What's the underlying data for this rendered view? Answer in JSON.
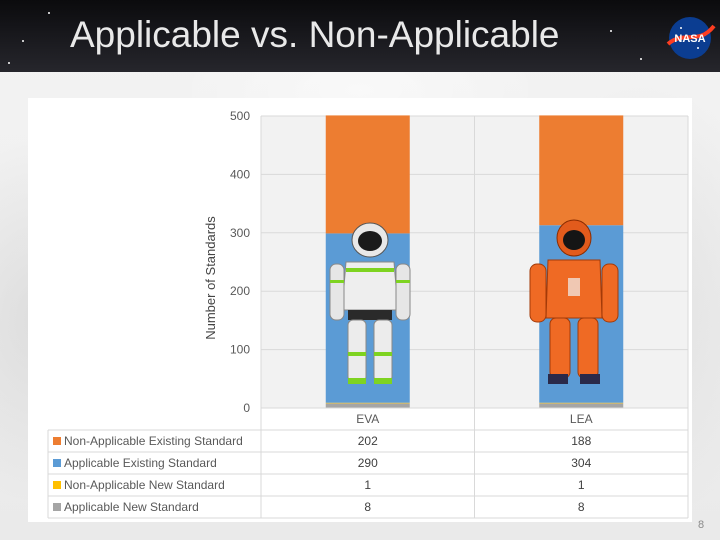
{
  "slide": {
    "title": "Applicable vs. Non-Applicable",
    "page_number": "8",
    "logo_text": "NASA"
  },
  "colors": {
    "non_applicable_existing": "#ED7D31",
    "applicable_existing": "#5B9BD5",
    "non_applicable_new": "#FFC000",
    "applicable_new": "#A5A5A5"
  },
  "chart_data": {
    "type": "bar",
    "stacked": true,
    "categories": [
      "EVA",
      "LEA"
    ],
    "ylabel": "Number of Standards",
    "ylim": [
      0,
      500
    ],
    "yticks": [
      0,
      100,
      200,
      300,
      400,
      500
    ],
    "grid": true,
    "legend_position": "data-table-left",
    "series": [
      {
        "name": "Applicable New Standard",
        "values": [
          8,
          8
        ],
        "color": "#A5A5A5"
      },
      {
        "name": "Non-Applicable New Standard",
        "values": [
          1,
          1
        ],
        "color": "#FFC000"
      },
      {
        "name": "Applicable Existing Standard",
        "values": [
          290,
          304
        ],
        "color": "#5B9BD5"
      },
      {
        "name": "Non-Applicable Existing Standard",
        "values": [
          202,
          188
        ],
        "color": "#ED7D31"
      }
    ],
    "table": {
      "rows": [
        {
          "name": "Non-Applicable Existing Standard",
          "color": "#ED7D31",
          "values": [
            "202",
            "188"
          ]
        },
        {
          "name": "Applicable Existing Standard",
          "color": "#5B9BD5",
          "values": [
            "290",
            "304"
          ]
        },
        {
          "name": "Non-Applicable New Standard",
          "color": "#FFC000",
          "values": [
            "1",
            "1"
          ]
        },
        {
          "name": "Applicable New Standard",
          "color": "#A5A5A5",
          "values": [
            "8",
            "8"
          ]
        }
      ]
    }
  }
}
